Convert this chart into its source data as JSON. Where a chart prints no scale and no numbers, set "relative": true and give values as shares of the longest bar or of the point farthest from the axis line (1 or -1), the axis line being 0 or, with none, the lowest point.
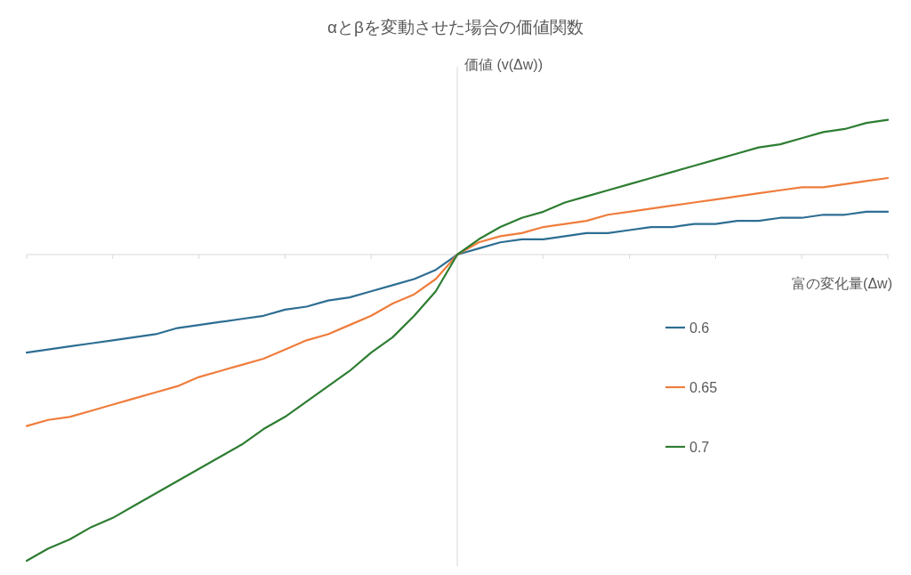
{
  "chart_data": {
    "type": "line",
    "title": "αとβを変動させた場合の価値関数",
    "xlabel": "富の変化量(Δw)",
    "ylabel": "価値 (v(Δw))",
    "relative": true,
    "legend": "right",
    "categories": [
      null,
      null,
      null,
      null,
      null,
      null,
      null,
      null,
      null,
      null,
      null,
      null,
      null,
      null,
      null,
      null,
      null,
      null,
      null,
      null,
      null,
      null,
      null,
      null,
      null,
      null,
      null,
      null,
      null,
      null,
      null,
      null,
      null,
      null,
      null,
      null,
      null,
      null,
      null,
      null,
      null
    ],
    "series": [
      {
        "name": "0.6",
        "color": "#2e6e93",
        "values": [
          -0.32,
          -0.31,
          -0.3,
          -0.29,
          -0.28,
          -0.27,
          -0.26,
          -0.24,
          -0.23,
          -0.22,
          -0.21,
          -0.2,
          -0.18,
          -0.17,
          -0.15,
          -0.14,
          -0.12,
          -0.1,
          -0.08,
          -0.05,
          0,
          0.02,
          0.04,
          0.05,
          0.05,
          0.06,
          0.07,
          0.07,
          0.08,
          0.09,
          0.09,
          0.1,
          0.1,
          0.11,
          0.11,
          0.12,
          0.12,
          0.13,
          0.13,
          0.14,
          0.14
        ]
      },
      {
        "name": "0.65",
        "color": "#ef7d3c",
        "values": [
          -0.56,
          -0.54,
          -0.53,
          -0.51,
          -0.49,
          -0.47,
          -0.45,
          -0.43,
          -0.4,
          -0.38,
          -0.36,
          -0.34,
          -0.31,
          -0.28,
          -0.26,
          -0.23,
          -0.2,
          -0.16,
          -0.13,
          -0.08,
          0,
          0.04,
          0.06,
          0.07,
          0.09,
          0.1,
          0.11,
          0.13,
          0.14,
          0.15,
          0.16,
          0.17,
          0.18,
          0.19,
          0.2,
          0.21,
          0.22,
          0.22,
          0.23,
          0.24,
          0.25
        ]
      },
      {
        "name": "0.7",
        "color": "#2e7d32",
        "values": [
          -1,
          -0.96,
          -0.93,
          -0.89,
          -0.86,
          -0.82,
          -0.78,
          -0.74,
          -0.7,
          -0.66,
          -0.62,
          -0.57,
          -0.53,
          -0.48,
          -0.43,
          -0.38,
          -0.32,
          -0.27,
          -0.2,
          -0.12,
          0,
          0.05,
          0.09,
          0.12,
          0.14,
          0.17,
          0.19,
          0.21,
          0.23,
          0.25,
          0.27,
          0.29,
          0.31,
          0.33,
          0.35,
          0.36,
          0.38,
          0.4,
          0.41,
          0.43,
          0.44
        ]
      }
    ]
  }
}
